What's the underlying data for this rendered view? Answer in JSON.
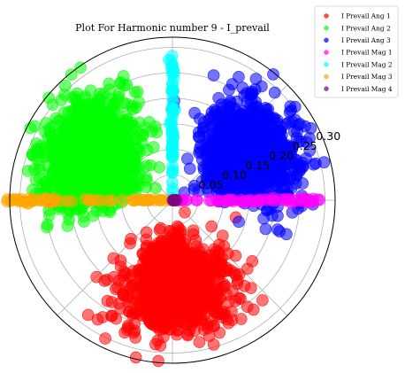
{
  "chart_data": {
    "type": "scatter",
    "projection": "polar",
    "title": "Plot For Harmonic number 9 - I_prevail",
    "r_ticks": [
      "0.05",
      "0.10",
      "0.15",
      "0.20",
      "0.25",
      "0.30"
    ],
    "r_tick_values": [
      0.05,
      0.1,
      0.15,
      0.2,
      0.25,
      0.3
    ],
    "r_max": 0.32,
    "theta_gridlines_deg": [
      0,
      45,
      90,
      135,
      180,
      225,
      270,
      315
    ],
    "grid": true,
    "legend_placement": "upper-right, outside axes",
    "series": [
      {
        "name": "I Prevail Ang 1",
        "color": "#ff0000",
        "kind": "cluster",
        "center_deg": 272,
        "spread_deg": 17,
        "r_mean": 0.17,
        "r_sd": 0.045,
        "count": 1000
      },
      {
        "name": "I Prevail Ang 2",
        "color": "#00ff00",
        "kind": "cluster",
        "center_deg": 150,
        "spread_deg": 17,
        "r_mean": 0.19,
        "r_sd": 0.045,
        "count": 1100
      },
      {
        "name": "I Prevail Ang 3",
        "color": "#0000ff",
        "kind": "cluster",
        "center_deg": 32,
        "spread_deg": 16,
        "r_mean": 0.18,
        "r_sd": 0.045,
        "count": 1000
      },
      {
        "name": "I Prevail Mag 1",
        "color": "#ff00ff",
        "kind": "ray",
        "theta_deg": 0,
        "r_min": 0.0,
        "r_max": 0.3,
        "count": 60
      },
      {
        "name": "I Prevail Mag 2",
        "color": "#00ffff",
        "kind": "ray",
        "theta_deg": 90,
        "r_min": 0.0,
        "r_max": 0.29,
        "count": 60
      },
      {
        "name": "I Prevail Mag 3",
        "color": "#ffa500",
        "kind": "ray",
        "theta_deg": 180,
        "r_min": 0.0,
        "r_max": 0.33,
        "count": 60
      },
      {
        "name": "I Prevail Mag 4",
        "color": "#800080",
        "kind": "center",
        "theta_deg": 0,
        "r_min": 0.0,
        "r_max": 0.01,
        "count": 6
      }
    ]
  }
}
